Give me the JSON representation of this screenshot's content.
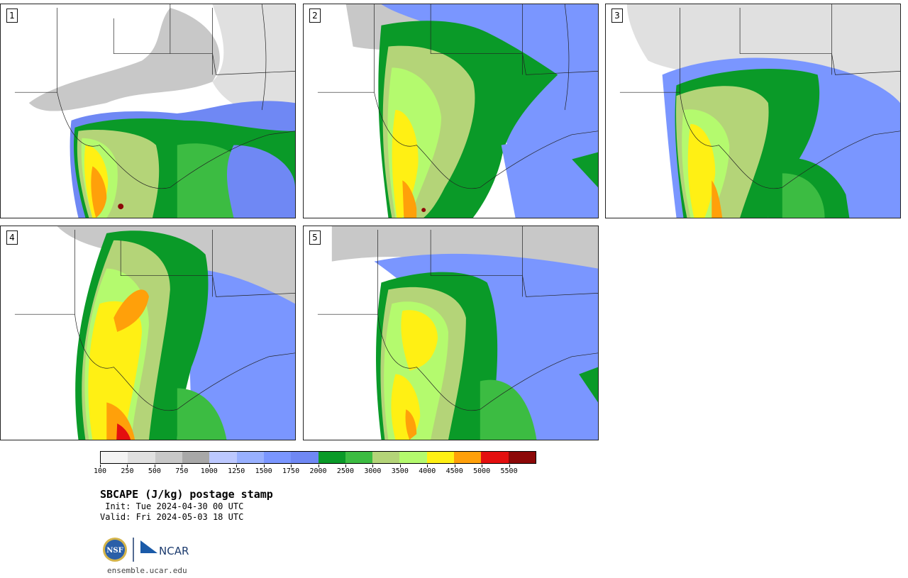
{
  "panels": [
    {
      "label": "1"
    },
    {
      "label": "2"
    },
    {
      "label": "3"
    },
    {
      "label": "4"
    },
    {
      "label": "5"
    }
  ],
  "colorbar": {
    "colors": [
      "#f4f4f4",
      "#e0e0e0",
      "#c8c8c8",
      "#a8a8a8",
      "#bcc8ff",
      "#98b0ff",
      "#7a96ff",
      "#6f88f4",
      "#0a9a28",
      "#3cbc42",
      "#b4d478",
      "#b4fa6e",
      "#fff014",
      "#ffa00a",
      "#e40f0f",
      "#8c0808"
    ],
    "tick_labels": [
      "100",
      "250",
      "500",
      "750",
      "1000",
      "1250",
      "1500",
      "1750",
      "2000",
      "2500",
      "3000",
      "3500",
      "4000",
      "4500",
      "5000",
      "5500"
    ]
  },
  "title": "SBCAPE (J/kg) postage stamp",
  "init": " Init: Tue 2024-04-30 00 UTC",
  "valid": "Valid: Fri 2024-05-03 18 UTC",
  "logo": {
    "left_text": "NSF",
    "right_text": "NCAR"
  },
  "site": "ensemble.ucar.edu"
}
